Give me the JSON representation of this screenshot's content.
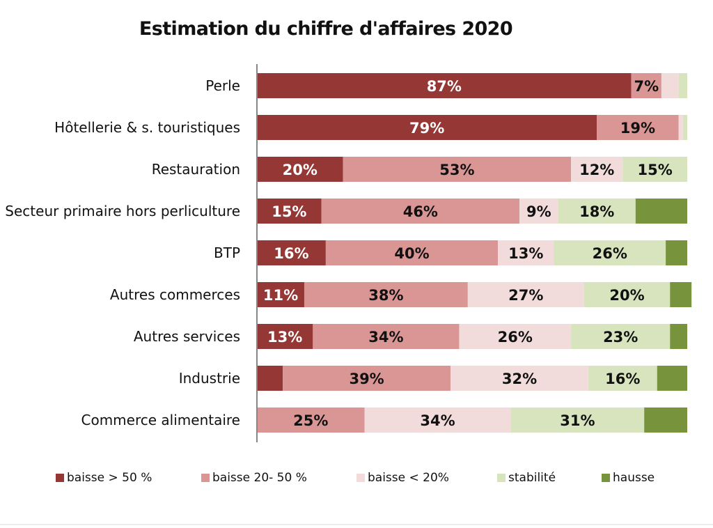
{
  "chart_data": {
    "type": "bar",
    "orientation": "horizontal",
    "stacked": true,
    "normalized": true,
    "title": "Estimation du chiffre d'affaires 2020",
    "categories": [
      "Perle",
      "Hôtellerie & s. touristiques",
      "Restauration",
      "Secteur primaire hors perliculture",
      "BTP",
      "Autres commerces",
      "Autres services",
      "Industrie",
      "Commerce alimentaire"
    ],
    "series": [
      {
        "name": "baisse > 50 %",
        "color": "#953735",
        "label_color": "#ffffff",
        "values": [
          87,
          79,
          20,
          15,
          16,
          11,
          13,
          6,
          0
        ],
        "labels": [
          "87%",
          "79%",
          "20%",
          "15%",
          "16%",
          "11%",
          "13%",
          "",
          ""
        ]
      },
      {
        "name": "baisse 20- 50 %",
        "color": "#d99694",
        "label_color": "#111111",
        "values": [
          7,
          19,
          53,
          46,
          40,
          38,
          34,
          39,
          25
        ],
        "labels": [
          "7%",
          "19%",
          "53%",
          "46%",
          "40%",
          "38%",
          "34%",
          "39%",
          "25%"
        ]
      },
      {
        "name": "baisse < 20%",
        "color": "#f2dcdb",
        "label_color": "#111111",
        "values": [
          4,
          1,
          12,
          9,
          13,
          27,
          26,
          32,
          34
        ],
        "labels": [
          "",
          "",
          "12%",
          "9%",
          "13%",
          "27%",
          "26%",
          "32%",
          "34%"
        ]
      },
      {
        "name": "stabilité",
        "color": "#d7e4bd",
        "label_color": "#111111",
        "values": [
          2,
          1,
          15,
          18,
          26,
          20,
          23,
          16,
          31
        ],
        "labels": [
          "",
          "",
          "15%",
          "18%",
          "26%",
          "20%",
          "23%",
          "16%",
          "31%"
        ]
      },
      {
        "name": "hausse",
        "color": "#77933c",
        "label_color": "#111111",
        "values": [
          0,
          0,
          0,
          12,
          5,
          5,
          4,
          7,
          10
        ],
        "labels": [
          "",
          "",
          "",
          "",
          "",
          "",
          "",
          "",
          ""
        ]
      }
    ],
    "xlim": [
      0,
      100
    ],
    "grid": false,
    "legend_position": "bottom"
  }
}
